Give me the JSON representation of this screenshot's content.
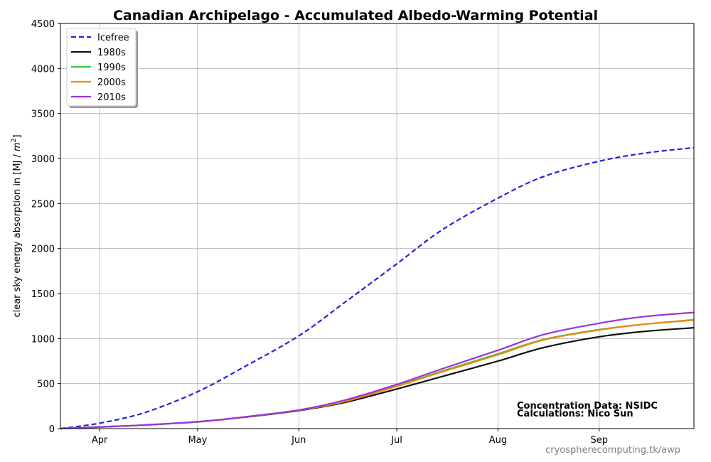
{
  "chart_data": {
    "type": "line",
    "title": "Canadian Archipelago - Accumulated Albedo-Warming Potential",
    "ylabel": "clear sky energy absorption in  [MJ / m²]",
    "ylabel_prefix": "clear sky energy absorption in  [MJ / ",
    "ylabel_unit_var": "m",
    "ylabel_unit_exp": "2",
    "ylabel_suffix": "]",
    "xlabel": "",
    "xlim": [
      "Mar 20",
      "Sep 30"
    ],
    "ylim": [
      0,
      4500
    ],
    "grid": true,
    "legend_position": "top-left",
    "x_ticks": [
      "Apr",
      "May",
      "Jun",
      "Jul",
      "Aug",
      "Sep"
    ],
    "y_ticks": [
      "0",
      "500",
      "1000",
      "1500",
      "2000",
      "2500",
      "3000",
      "3500",
      "4000",
      "4500"
    ],
    "x": [
      "Mar 20",
      "Apr 1",
      "Apr 15",
      "May 1",
      "May 15",
      "Jun 1",
      "Jun 15",
      "Jul 1",
      "Jul 15",
      "Aug 1",
      "Aug 15",
      "Sep 1",
      "Sep 15",
      "Sep 30"
    ],
    "series": [
      {
        "name": "Icefree",
        "color": "#2222e0",
        "dash": true,
        "values": [
          0,
          60,
          180,
          410,
          680,
          1030,
          1400,
          1830,
          2210,
          2560,
          2800,
          2970,
          3060,
          3120
        ]
      },
      {
        "name": "1980s",
        "color": "#111111",
        "dash": false,
        "values": [
          0,
          18,
          40,
          75,
          125,
          200,
          290,
          440,
          580,
          750,
          900,
          1020,
          1080,
          1120
        ]
      },
      {
        "name": "1990s",
        "color": "#33cc33",
        "dash": false,
        "values": [
          0,
          18,
          40,
          76,
          127,
          205,
          305,
          475,
          640,
          830,
          990,
          1100,
          1160,
          1205
        ]
      },
      {
        "name": "2000s",
        "color": "#ee8811",
        "dash": false,
        "values": [
          0,
          18,
          40,
          76,
          127,
          205,
          300,
          470,
          632,
          820,
          985,
          1095,
          1160,
          1210
        ]
      },
      {
        "name": "2010s",
        "color": "#9933dd",
        "dash": false,
        "values": [
          0,
          18,
          40,
          76,
          128,
          206,
          315,
          490,
          665,
          870,
          1045,
          1170,
          1245,
          1290
        ]
      }
    ],
    "annotations": [
      "Concentration Data: NSIDC",
      "Calculations: Nico Sun"
    ],
    "footer": "cryospherecomputing.tk/awp"
  }
}
